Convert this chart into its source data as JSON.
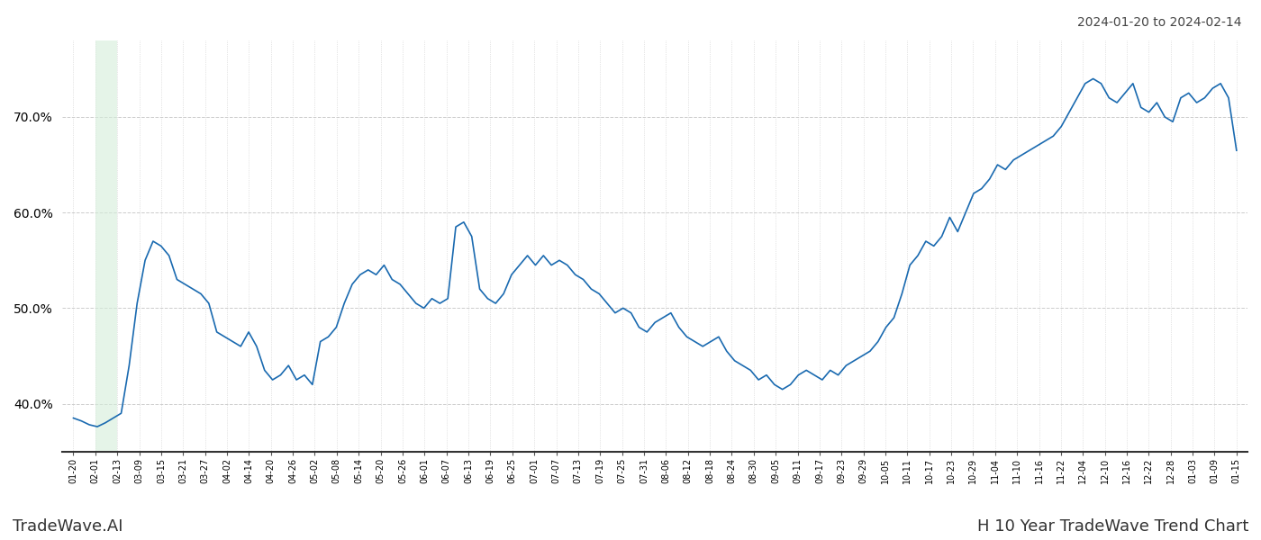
{
  "title_top_right": "2024-01-20 to 2024-02-14",
  "title_bottom_left": "TradeWave.AI",
  "title_bottom_right": "H 10 Year TradeWave Trend Chart",
  "line_color": "#1a6ab0",
  "line_width": 1.2,
  "background_color": "#ffffff",
  "grid_color": "#cccccc",
  "shade_color": "#d4edda",
  "shade_alpha": 0.6,
  "ylim": [
    35.0,
    78.0
  ],
  "yticks": [
    40.0,
    50.0,
    60.0,
    70.0
  ],
  "ytick_labels": [
    "40.0%",
    "50.0%",
    "60.0%",
    "70.0%"
  ],
  "x_labels": [
    "01-20",
    "02-01",
    "02-13",
    "03-09",
    "03-15",
    "03-21",
    "03-27",
    "04-02",
    "04-14",
    "04-20",
    "04-26",
    "05-02",
    "05-08",
    "05-14",
    "05-20",
    "05-26",
    "06-01",
    "06-07",
    "06-13",
    "06-19",
    "06-25",
    "07-01",
    "07-07",
    "07-13",
    "07-19",
    "07-25",
    "07-31",
    "08-06",
    "08-12",
    "08-18",
    "08-24",
    "08-30",
    "09-05",
    "09-11",
    "09-17",
    "09-23",
    "09-29",
    "10-05",
    "10-11",
    "10-17",
    "10-23",
    "10-29",
    "11-04",
    "11-10",
    "11-16",
    "11-22",
    "12-04",
    "12-10",
    "12-16",
    "12-22",
    "12-28",
    "01-03",
    "01-09",
    "01-15"
  ],
  "shade_label_start": "02-01",
  "shade_label_end": "02-13",
  "values": [
    38.5,
    38.2,
    37.8,
    37.6,
    38.0,
    38.5,
    39.0,
    44.0,
    50.5,
    55.0,
    57.0,
    56.5,
    55.5,
    53.0,
    52.5,
    52.0,
    51.5,
    50.5,
    47.5,
    47.0,
    46.5,
    46.0,
    47.5,
    46.0,
    43.5,
    42.5,
    43.0,
    44.0,
    42.5,
    43.0,
    42.0,
    46.5,
    47.0,
    48.0,
    50.5,
    52.5,
    53.5,
    54.0,
    53.5,
    54.5,
    53.0,
    52.5,
    51.5,
    50.5,
    50.0,
    51.0,
    50.5,
    51.0,
    58.5,
    59.0,
    57.5,
    52.0,
    51.0,
    50.5,
    51.5,
    53.5,
    54.5,
    55.5,
    54.5,
    55.5,
    54.5,
    55.0,
    54.5,
    53.5,
    53.0,
    52.0,
    51.5,
    50.5,
    49.5,
    50.0,
    49.5,
    48.0,
    47.5,
    48.5,
    49.0,
    49.5,
    48.0,
    47.0,
    46.5,
    46.0,
    46.5,
    47.0,
    45.5,
    44.5,
    44.0,
    43.5,
    42.5,
    43.0,
    42.0,
    41.5,
    42.0,
    43.0,
    43.5,
    43.0,
    42.5,
    43.5,
    43.0,
    44.0,
    44.5,
    45.0,
    45.5,
    46.5,
    48.0,
    49.0,
    51.5,
    54.5,
    55.5,
    57.0,
    56.5,
    57.5,
    59.5,
    58.0,
    60.0,
    62.0,
    62.5,
    63.5,
    65.0,
    64.5,
    65.5,
    66.0,
    66.5,
    67.0,
    67.5,
    68.0,
    69.0,
    70.5,
    72.0,
    73.5,
    74.0,
    73.5,
    72.0,
    71.5,
    72.5,
    73.5,
    71.0,
    70.5,
    71.5,
    70.0,
    69.5,
    72.0,
    72.5,
    71.5,
    72.0,
    73.0,
    73.5,
    72.0,
    66.5
  ]
}
